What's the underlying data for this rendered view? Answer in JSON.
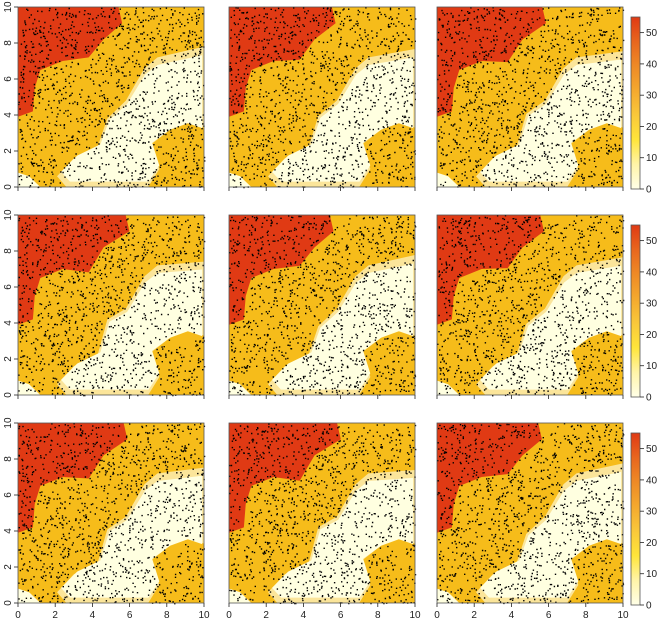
{
  "chart_data": {
    "type": "heatmap",
    "layout": {
      "rows": 3,
      "cols": 3
    },
    "x": {
      "lim": [
        0,
        10
      ],
      "ticks": [
        0,
        2,
        4,
        6,
        8,
        10
      ],
      "tick_labels": [
        "0",
        "2",
        "4",
        "6",
        "8",
        "10"
      ]
    },
    "y": {
      "lim": [
        0,
        10
      ],
      "ticks": [
        0,
        2,
        4,
        6,
        8,
        10
      ],
      "tick_labels": [
        "0",
        "2",
        "4",
        "6",
        "8",
        "10"
      ]
    },
    "colorbar": {
      "ticks": [
        0,
        10,
        20,
        30,
        40,
        50
      ],
      "tick_labels": [
        "0",
        "10",
        "20",
        "30",
        "40",
        "50"
      ],
      "lim": [
        0,
        55
      ],
      "colors": [
        "#ffffe8",
        "#fff4a8",
        "#ffe53a",
        "#f9c83a",
        "#f4a92e",
        "#ee8a26",
        "#e8661e",
        "#e03a14"
      ]
    },
    "panels": [
      {
        "row": 0,
        "col": 0,
        "x_axis": false,
        "y_axis": true,
        "colorbar": false
      },
      {
        "row": 0,
        "col": 1,
        "x_axis": false,
        "y_axis": false,
        "colorbar": false
      },
      {
        "row": 0,
        "col": 2,
        "x_axis": false,
        "y_axis": false,
        "colorbar": true
      },
      {
        "row": 1,
        "col": 0,
        "x_axis": false,
        "y_axis": true,
        "colorbar": false
      },
      {
        "row": 1,
        "col": 1,
        "x_axis": false,
        "y_axis": false,
        "colorbar": false
      },
      {
        "row": 1,
        "col": 2,
        "x_axis": false,
        "y_axis": false,
        "colorbar": true
      },
      {
        "row": 2,
        "col": 0,
        "x_axis": true,
        "y_axis": true,
        "colorbar": false
      },
      {
        "row": 2,
        "col": 1,
        "x_axis": true,
        "y_axis": false,
        "colorbar": false
      },
      {
        "row": 2,
        "col": 2,
        "x_axis": true,
        "y_axis": false,
        "colorbar": true
      }
    ],
    "regions": {
      "high": {
        "value": 48,
        "color": "#e03a14"
      },
      "mid": {
        "value": 28,
        "color": "#f6bc1a"
      },
      "low": {
        "value": 12,
        "color": "#fbe59a"
      },
      "min": {
        "value": 3,
        "color": "#ffffe0"
      }
    },
    "points_overlay": true,
    "title": "",
    "xlabel": "",
    "ylabel": ""
  }
}
